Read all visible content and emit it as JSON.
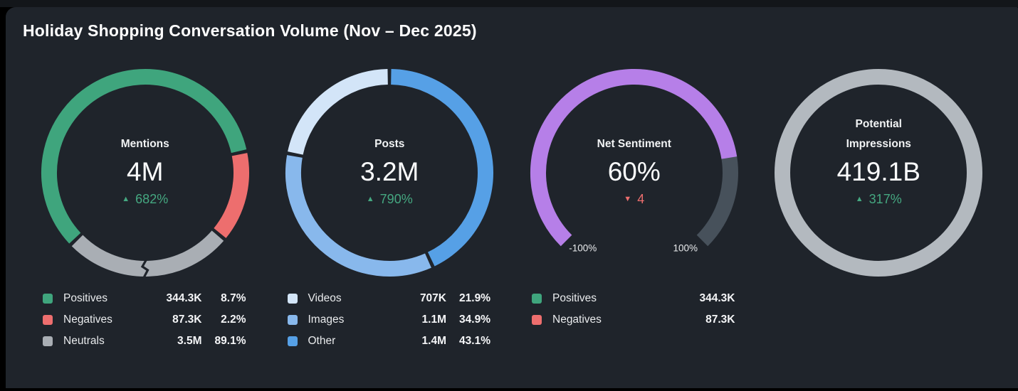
{
  "title": "Holiday Shopping Conversation Volume (Nov – Dec 2025)",
  "theme": {
    "page_bg": "#000000",
    "top_strip": "#13161a",
    "panel_bg": "#1f242b",
    "text_primary": "#fbfcfd",
    "text_secondary": "#e9ebed",
    "delta_up_color": "#45a881",
    "delta_down_color": "#ed6e6e"
  },
  "chart_data": [
    {
      "type": "donut",
      "title": "Mentions",
      "center_value": "4M",
      "delta": {
        "direction": "up",
        "value": "682%"
      },
      "scale_break_at_deg": 180,
      "legend_shows_pct": true,
      "segments": [
        {
          "label": "Positives",
          "value": "344.3K",
          "pct": "8.7%",
          "color": "#3fa57d",
          "start_deg": 226,
          "sweep_deg": 212
        },
        {
          "label": "Negatives",
          "value": "87.3K",
          "pct": "2.2%",
          "color": "#ed6e6e",
          "start_deg": 78,
          "sweep_deg": 52
        },
        {
          "label": "Neutrals",
          "value": "3.5M",
          "pct": "89.1%",
          "color": "#a9aeb4",
          "start_deg": 130,
          "sweep_deg": 96
        }
      ]
    },
    {
      "type": "donut",
      "title": "Posts",
      "center_value": "3.2M",
      "delta": {
        "direction": "up",
        "value": "790%"
      },
      "legend_shows_pct": true,
      "segments": [
        {
          "label": "Videos",
          "value": "707K",
          "pct": "21.9%",
          "color": "#d3e5f8",
          "start_deg": 280.8,
          "sweep_deg": 79.2
        },
        {
          "label": "Images",
          "value": "1.1M",
          "pct": "34.9%",
          "color": "#88b8ec",
          "start_deg": 155.2,
          "sweep_deg": 125.6
        },
        {
          "label": "Other",
          "value": "1.4M",
          "pct": "43.1%",
          "color": "#56a0e6",
          "start_deg": 0,
          "sweep_deg": 155.2
        }
      ]
    },
    {
      "type": "gauge",
      "title": "Net Sentiment",
      "center_value": "60%",
      "delta": {
        "direction": "down",
        "value": "4"
      },
      "legend_shows_pct": false,
      "gauge": {
        "min": -100,
        "max": 100,
        "value": 60,
        "min_label": "-100%",
        "max_label": "100%",
        "start_deg": 225,
        "sweep_deg": 270,
        "fill_color": "#b67fe8",
        "track_color": "#47515b"
      },
      "segments": [
        {
          "label": "Positives",
          "value": "344.3K",
          "color": "#3fa57d"
        },
        {
          "label": "Negatives",
          "value": "87.3K",
          "color": "#ed6e6e"
        }
      ]
    },
    {
      "type": "ring",
      "title": "Potential Impressions",
      "title_lines": [
        "Potential",
        "Impressions"
      ],
      "center_value": "419.1B",
      "delta": {
        "direction": "up",
        "value": "317%"
      },
      "ring_color": "#b3b9bf",
      "segments": []
    }
  ]
}
